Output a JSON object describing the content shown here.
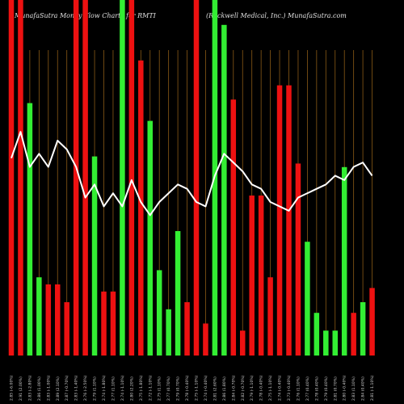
{
  "header": {
    "left": "MunafaSutra  Money Flow  Charts for RMTI",
    "right": "(Rockwell Medical, Inc.) MunafaSutra.com"
  },
  "colors": {
    "background": "#000000",
    "up": "#33ee33",
    "down": "#ee1111",
    "line": "#ffffff",
    "grid": "#8a5a16"
  },
  "chart_data": {
    "type": "bar",
    "note_series": "bars = money flow volume; line = price",
    "categories": [
      "2.85 (-6.00%)",
      "2.91 (2.00%)",
      "2.83 (-2.80%)",
      "2.86 (1.00%)",
      "2.83 (-1.00%)",
      "2.89 (2.10%)",
      "2.87 (-0.70%)",
      "2.83 (-1.40%)",
      "2.76 (-2.50%)",
      "2.79 (1.10%)",
      "2.74 (-1.80%)",
      "2.77 (1.10%)",
      "2.74 (-1.10%)",
      "2.80 (2.20%)",
      "2.75 (-1.80%)",
      "2.72 (-1.10%)",
      "2.75 (1.10%)",
      "2.77 (0.70%)",
      "2.79 (0.70%)",
      "2.78 (-0.40%)",
      "2.75 (-1.10%)",
      "2.74 (-0.40%)",
      "2.81 (2.60%)",
      "2.86 (1.80%)",
      "2.84 (-0.70%)",
      "2.82 (-0.70%)",
      "2.79 (-1.10%)",
      "2.78 (-0.40%)",
      "2.75 (-1.10%)",
      "2.74 (-0.40%)",
      "2.73 (-0.40%)",
      "2.76 (1.10%)",
      "2.77 (0.40%)",
      "2.78 (0.40%)",
      "2.79 (0.40%)",
      "2.81 (0.70%)",
      "2.80 (-0.40%)",
      "2.83 (1.10%)",
      "2.84 (0.40%)",
      "2.81 (-1.10%)"
    ],
    "bars": {
      "values": [
        100,
        100,
        71,
        22,
        20,
        20,
        15,
        100,
        100,
        56,
        18,
        18,
        100,
        100,
        83,
        66,
        24,
        13,
        35,
        15,
        100,
        9,
        100,
        93,
        72,
        7,
        45,
        45,
        22,
        76,
        76,
        54,
        32,
        12,
        7,
        7,
        53,
        12,
        15,
        19
      ],
      "colors": [
        "down",
        "down",
        "up",
        "up",
        "down",
        "down",
        "down",
        "down",
        "down",
        "up",
        "down",
        "down",
        "up",
        "down",
        "down",
        "up",
        "up",
        "up",
        "up",
        "down",
        "down",
        "down",
        "up",
        "up",
        "down",
        "down",
        "down",
        "down",
        "down",
        "down",
        "down",
        "down",
        "up",
        "up",
        "up",
        "up",
        "up",
        "down",
        "up",
        "down"
      ]
    },
    "line": {
      "name": "price",
      "values": [
        2.85,
        2.91,
        2.83,
        2.86,
        2.83,
        2.89,
        2.87,
        2.83,
        2.76,
        2.79,
        2.74,
        2.77,
        2.74,
        2.8,
        2.75,
        2.72,
        2.75,
        2.77,
        2.79,
        2.78,
        2.75,
        2.74,
        2.81,
        2.86,
        2.84,
        2.82,
        2.79,
        2.78,
        2.75,
        2.74,
        2.73,
        2.76,
        2.77,
        2.78,
        2.79,
        2.81,
        2.8,
        2.83,
        2.84,
        2.81
      ],
      "ylim": [
        2.4,
        3.1
      ]
    },
    "ylim": [
      0,
      100
    ],
    "grid": "vertical",
    "legend": "none",
    "xlabel": "",
    "ylabel": ""
  }
}
